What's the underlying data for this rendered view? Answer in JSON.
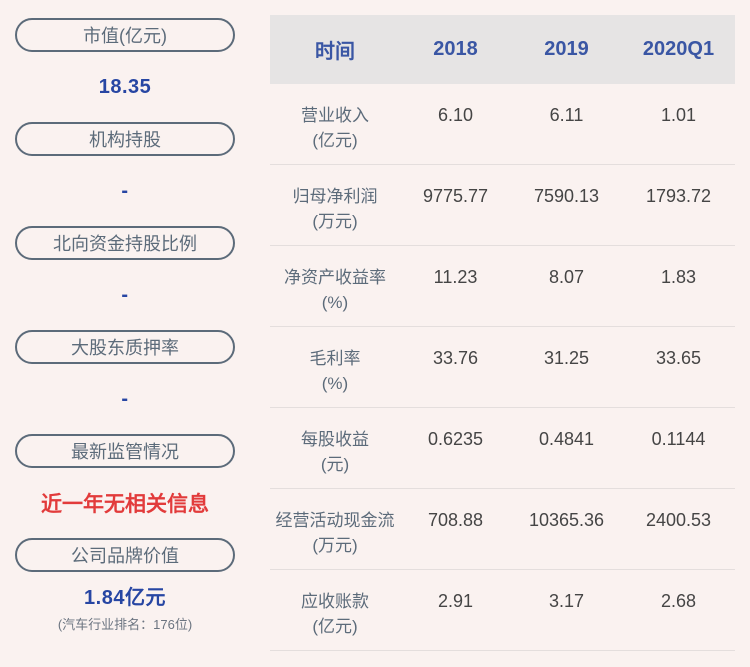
{
  "sidebar": {
    "items": [
      {
        "label": "市值(亿元)",
        "value": "18.35"
      },
      {
        "label": "机构持股",
        "value": "-"
      },
      {
        "label": "北向资金持股比例",
        "value": "-"
      },
      {
        "label": "大股东质押率",
        "value": "-"
      },
      {
        "label": "最新监管情况",
        "value": "近一年无相关信息"
      },
      {
        "label": "公司品牌价值",
        "value": "1.84亿元",
        "subvalue": "(汽车行业排名：176位)"
      }
    ]
  },
  "table": {
    "header": [
      "时间",
      "2018",
      "2019",
      "2020Q1"
    ],
    "rows": [
      {
        "name": "营业收入",
        "unit": "(亿元)",
        "values": [
          "6.10",
          "6.11",
          "1.01"
        ]
      },
      {
        "name": "归母净利润",
        "unit": "(万元)",
        "values": [
          "9775.77",
          "7590.13",
          "1793.72"
        ]
      },
      {
        "name": "净资产收益率",
        "unit": "(%)",
        "values": [
          "11.23",
          "8.07",
          "1.83"
        ]
      },
      {
        "name": "毛利率",
        "unit": "(%)",
        "values": [
          "33.76",
          "31.25",
          "33.65"
        ]
      },
      {
        "name": "每股收益",
        "unit": "(元)",
        "values": [
          "0.6235",
          "0.4841",
          "0.1144"
        ]
      },
      {
        "name": "经营活动现金流",
        "unit": "(万元)",
        "values": [
          "708.88",
          "10365.36",
          "2400.53"
        ]
      },
      {
        "name": "应收账款",
        "unit": "(亿元)",
        "values": [
          "2.91",
          "3.17",
          "2.68"
        ]
      }
    ]
  },
  "colors": {
    "page_background": "#faf2f0",
    "pill_border_text": "#5c6b7a",
    "value_blue": "#2746a3",
    "alert_red": "#e23b3b",
    "subvalue_gray": "#6b7480",
    "table_header_bg": "#e6e4e4",
    "table_header_text": "#3a56a4",
    "table_value_text": "#454545",
    "row_divider": "#e4dedd"
  }
}
